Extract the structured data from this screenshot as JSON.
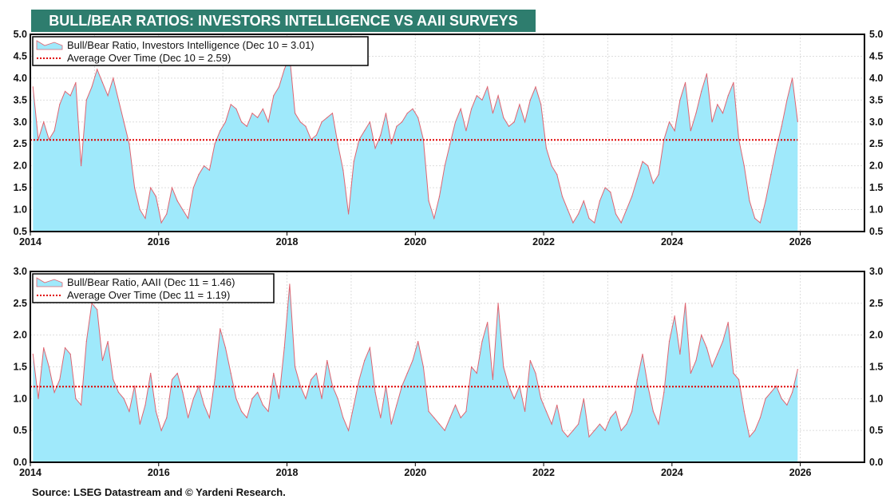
{
  "title": "BULL/BEAR RATIOS: INVESTORS INTELLIGENCE VS AAII SURVEYS",
  "source": "Source: LSEG Datastream and © Yardeni Research.",
  "colors": {
    "title_bg": "#2e7d6e",
    "area_fill": "#9fe9fb",
    "series_line": "#e06470",
    "average_line": "#e00000"
  },
  "chart_data": [
    {
      "type": "area",
      "xlim": [
        2014,
        2027
      ],
      "ylim": [
        0.5,
        5.0
      ],
      "x_ticks": [
        "2014",
        "2016",
        "2018",
        "2020",
        "2022",
        "2024",
        "2026"
      ],
      "y_ticks": [
        "0.5",
        "1.0",
        "1.5",
        "2.0",
        "2.5",
        "3.0",
        "3.5",
        "4.0",
        "4.5",
        "5.0"
      ],
      "grid": true,
      "legend_placement": "top-left",
      "legend": [
        "Bull/Bear Ratio, Investors Intelligence (Dec 10 = 3.01)",
        "Average Over Time (Dec 10 = 2.59)"
      ],
      "average": 2.59,
      "series": {
        "start": "2014-01",
        "frequency": "monthly",
        "values": [
          3.8,
          2.6,
          3.0,
          2.6,
          2.8,
          3.4,
          3.7,
          3.6,
          3.9,
          2.0,
          3.5,
          3.8,
          4.2,
          3.9,
          3.6,
          4.0,
          3.5,
          3.0,
          2.5,
          1.5,
          1.0,
          0.8,
          1.5,
          1.3,
          0.7,
          0.9,
          1.5,
          1.2,
          1.0,
          0.8,
          1.5,
          1.8,
          2.0,
          1.9,
          2.5,
          2.8,
          3.0,
          3.4,
          3.3,
          3.0,
          2.9,
          3.2,
          3.1,
          3.3,
          3.0,
          3.6,
          3.8,
          4.2,
          4.5,
          3.2,
          3.0,
          2.9,
          2.6,
          2.7,
          3.0,
          3.1,
          3.2,
          2.5,
          1.9,
          0.9,
          2.1,
          2.6,
          2.8,
          3.0,
          2.4,
          2.7,
          3.2,
          2.5,
          2.9,
          3.0,
          3.2,
          3.3,
          3.1,
          2.6,
          1.2,
          0.8,
          1.3,
          2.0,
          2.5,
          3.0,
          3.3,
          2.8,
          3.3,
          3.6,
          3.5,
          3.8,
          3.2,
          3.6,
          3.1,
          2.9,
          3.0,
          3.4,
          3.0,
          3.5,
          3.8,
          3.4,
          2.4,
          2.0,
          1.8,
          1.3,
          1.0,
          0.7,
          0.9,
          1.2,
          0.8,
          0.7,
          1.2,
          1.5,
          1.4,
          0.9,
          0.7,
          1.0,
          1.3,
          1.7,
          2.1,
          2.0,
          1.6,
          1.8,
          2.6,
          3.0,
          2.8,
          3.5,
          3.9,
          2.8,
          3.2,
          3.7,
          4.1,
          3.0,
          3.4,
          3.2,
          3.6,
          3.9,
          2.6,
          2.0,
          1.2,
          0.8,
          0.7,
          1.2,
          1.8,
          2.4,
          2.9,
          3.5,
          4.0,
          3.01
        ]
      }
    },
    {
      "type": "area",
      "xlim": [
        2014,
        2027
      ],
      "ylim": [
        0.0,
        3.0
      ],
      "x_ticks": [
        "2014",
        "2016",
        "2018",
        "2020",
        "2022",
        "2024",
        "2026"
      ],
      "y_ticks": [
        "0.0",
        "0.5",
        "1.0",
        "1.5",
        "2.0",
        "2.5",
        "3.0"
      ],
      "grid": true,
      "legend_placement": "top-left",
      "legend": [
        "Bull/Bear Ratio, AAII (Dec 11 = 1.46)",
        "Average Over Time (Dec 11 = 1.19)"
      ],
      "average": 1.19,
      "series": {
        "start": "2014-01",
        "frequency": "monthly",
        "values": [
          1.7,
          1.0,
          1.8,
          1.5,
          1.1,
          1.3,
          1.8,
          1.7,
          1.0,
          0.9,
          1.9,
          2.5,
          2.4,
          1.6,
          1.9,
          1.3,
          1.1,
          1.0,
          0.8,
          1.2,
          0.6,
          0.9,
          1.4,
          0.8,
          0.5,
          0.7,
          1.3,
          1.4,
          1.1,
          0.7,
          1.0,
          1.2,
          0.9,
          0.7,
          1.3,
          2.1,
          1.8,
          1.4,
          1.0,
          0.8,
          0.7,
          1.0,
          1.1,
          0.9,
          0.8,
          1.4,
          1.0,
          1.8,
          2.8,
          1.5,
          1.2,
          1.0,
          1.3,
          1.4,
          1.0,
          1.6,
          1.2,
          1.0,
          0.7,
          0.5,
          0.9,
          1.3,
          1.6,
          1.8,
          1.1,
          0.7,
          1.2,
          0.6,
          0.9,
          1.2,
          1.4,
          1.6,
          1.9,
          1.5,
          0.8,
          0.7,
          0.6,
          0.5,
          0.7,
          0.9,
          0.7,
          0.8,
          1.5,
          1.4,
          1.9,
          2.2,
          1.3,
          2.5,
          1.5,
          1.2,
          1.0,
          1.2,
          0.8,
          1.6,
          1.4,
          1.0,
          0.8,
          0.6,
          0.9,
          0.5,
          0.4,
          0.5,
          0.6,
          1.0,
          0.4,
          0.5,
          0.6,
          0.5,
          0.7,
          0.8,
          0.5,
          0.6,
          0.8,
          1.3,
          1.7,
          1.2,
          0.8,
          0.6,
          1.1,
          1.9,
          2.3,
          1.7,
          2.5,
          1.4,
          1.6,
          2.0,
          1.8,
          1.5,
          1.7,
          1.9,
          2.2,
          1.4,
          1.3,
          0.8,
          0.4,
          0.5,
          0.7,
          1.0,
          1.1,
          1.2,
          1.0,
          0.9,
          1.1,
          1.46
        ]
      }
    }
  ]
}
